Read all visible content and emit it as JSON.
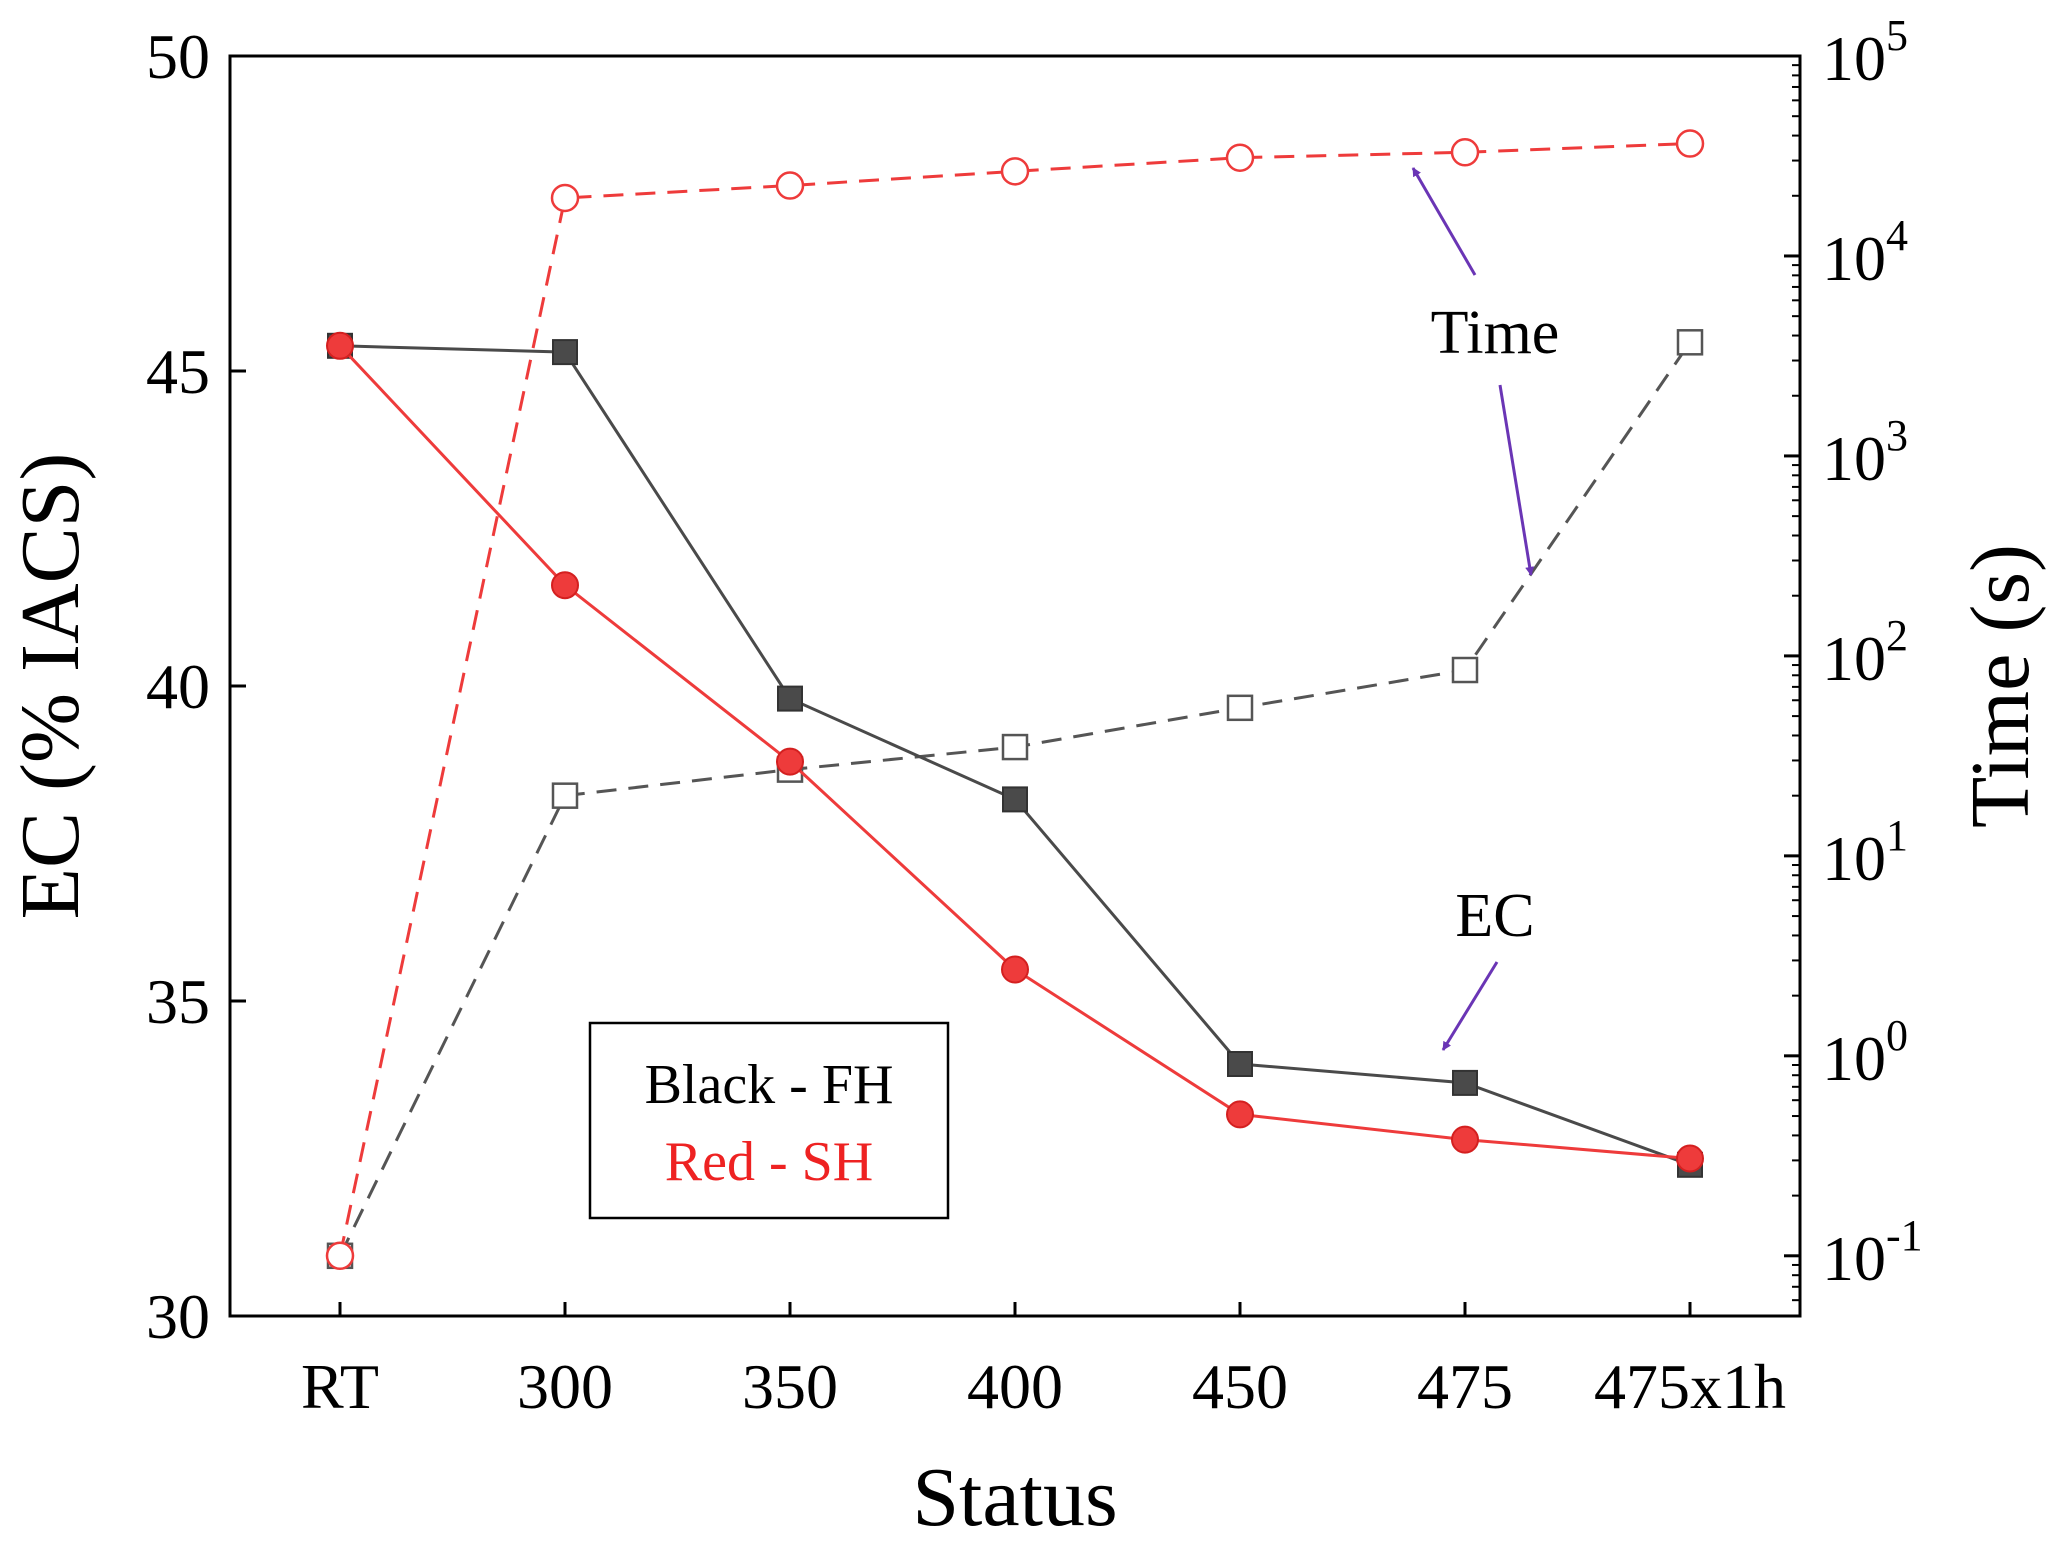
{
  "chart_data": {
    "type": "line",
    "xlabel": "Status",
    "ylabel": "EC (% IACS)",
    "y2label": "Time (s)",
    "categories": [
      "RT",
      "300",
      "350",
      "400",
      "450",
      "475",
      "475x1h"
    ],
    "ylim": [
      30,
      50
    ],
    "yticks": [
      30,
      35,
      40,
      45,
      50
    ],
    "y2scale": "log",
    "y2lim": [
      0.05,
      100000
    ],
    "y2ticks": [
      {
        "value": 0.1,
        "base": "10",
        "exp": "-1"
      },
      {
        "value": 1,
        "base": "10",
        "exp": "0"
      },
      {
        "value": 10,
        "base": "10",
        "exp": "1"
      },
      {
        "value": 100,
        "base": "10",
        "exp": "2"
      },
      {
        "value": 1000,
        "base": "10",
        "exp": "3"
      },
      {
        "value": 10000,
        "base": "10",
        "exp": "4"
      },
      {
        "value": 100000,
        "base": "10",
        "exp": "5"
      }
    ],
    "series": [
      {
        "name": "EC - FH",
        "axis": "left",
        "color": "#4a4a4a",
        "marker": "filled-square",
        "line": "solid",
        "values": [
          45.4,
          45.3,
          39.8,
          38.2,
          34.0,
          33.7,
          32.4
        ]
      },
      {
        "name": "EC - SH",
        "axis": "left",
        "color": "#ee3b3b",
        "marker": "filled-circle",
        "line": "solid",
        "values": [
          45.4,
          41.6,
          38.8,
          35.5,
          33.2,
          32.8,
          32.5
        ]
      },
      {
        "name": "Time - FH",
        "axis": "right",
        "color": "#555555",
        "marker": "open-square",
        "line": "dashed",
        "values": [
          0.1,
          20,
          27,
          35,
          55,
          85,
          3700
        ]
      },
      {
        "name": "Time - SH",
        "axis": "right",
        "color": "#ee3b3b",
        "marker": "open-circle",
        "line": "dashed",
        "values": [
          0.1,
          19500,
          22500,
          26500,
          31000,
          33000,
          36500
        ]
      }
    ],
    "annotations": {
      "time": "Time",
      "ec": "EC"
    },
    "legend": {
      "position": "bottom-left",
      "line1": "Black - FH",
      "line2": "Red - SH",
      "line1_color": "#000000",
      "line2_color": "#ee2222"
    },
    "annotation_arrow_color": "#6a35b5",
    "grid": false
  }
}
